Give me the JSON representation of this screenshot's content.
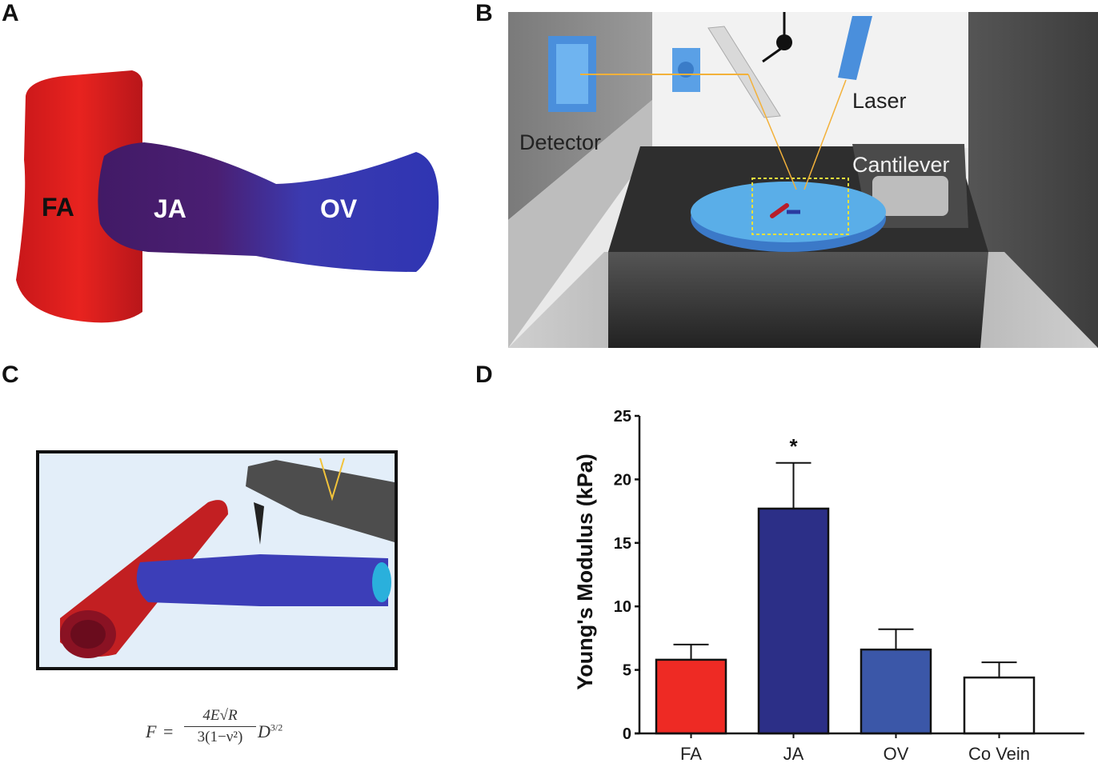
{
  "panels": {
    "A": {
      "letter": "A",
      "labels": {
        "fa": "FA",
        "ja": "JA",
        "ov": "OV"
      },
      "colors": {
        "fa": "#e8231f",
        "ja": "#4a1f73",
        "ov": "#3236b5"
      }
    },
    "B": {
      "letter": "B",
      "labels": {
        "detector": "Detector",
        "laser": "Laser",
        "cantilever": "Cantilever"
      }
    },
    "C": {
      "letter": "C",
      "formula": {
        "lhs": "F",
        "eq": "=",
        "numerator": "4E√R",
        "denominator": "3(1−ν²)",
        "rhs_base": "D",
        "rhs_exp": "3/2"
      }
    },
    "D": {
      "letter": "D"
    }
  },
  "chart_data": {
    "type": "bar",
    "title": "",
    "xlabel": "",
    "ylabel": "Young's Modulus (kPa)",
    "ylim": [
      0,
      25
    ],
    "yticks": [
      0,
      5,
      10,
      15,
      20,
      25
    ],
    "categories": [
      "FA",
      "JA",
      "OV",
      "Co Vein"
    ],
    "values": [
      5.8,
      17.7,
      6.6,
      4.4
    ],
    "error_upper": [
      7.0,
      21.3,
      8.2,
      5.6
    ],
    "colors": [
      "#ee2a24",
      "#2c2f87",
      "#3b57a8",
      "#ffffff"
    ],
    "annotations": [
      {
        "category": "JA",
        "text": "*"
      }
    ],
    "grid": false,
    "legend": null
  }
}
